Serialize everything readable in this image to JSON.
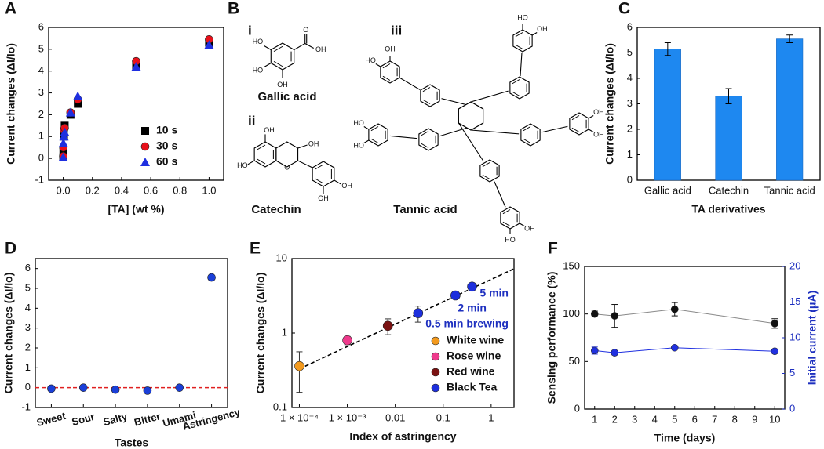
{
  "chart_data": [
    {
      "panel": "A",
      "type": "scatter",
      "x": [
        0,
        0.001,
        0.005,
        0.01,
        0.05,
        0.1,
        0.5,
        1
      ],
      "series": [
        {
          "name": "10 s",
          "color": "#000000",
          "marker": "square",
          "values": [
            0.05,
            0.4,
            1.0,
            1.5,
            2.0,
            2.5,
            4.2,
            5.3
          ]
        },
        {
          "name": "30 s",
          "color": "#e8101a",
          "marker": "circle",
          "values": [
            0.1,
            0.5,
            1.3,
            1.4,
            2.1,
            2.7,
            4.45,
            5.45
          ]
        },
        {
          "name": "60 s",
          "color": "#1f2fe0",
          "marker": "triangle",
          "values": [
            0.05,
            0.7,
            1.0,
            1.2,
            2.1,
            2.85,
            4.2,
            5.2
          ]
        }
      ],
      "xlabel": "[TA] (wt %)",
      "ylabel": "Current changes (ΔI/Io)",
      "xlim": [
        -0.1,
        1.1
      ],
      "ylim": [
        -1,
        6
      ],
      "xticks": [
        {
          "value": 0,
          "label": "0.0"
        },
        {
          "value": 0.2,
          "label": "0.2"
        },
        {
          "value": 0.4,
          "label": "0.4"
        },
        {
          "value": 0.6,
          "label": "0.6"
        },
        {
          "value": 0.8,
          "label": "0.8"
        },
        {
          "value": 1,
          "label": "1.0"
        }
      ],
      "yticks": [
        -1,
        0,
        1,
        2,
        3,
        4,
        5,
        6
      ],
      "legend": "lower right"
    },
    {
      "panel": "C",
      "type": "bar",
      "categories": [
        "Gallic acid",
        "Catechin",
        "Tannic acid"
      ],
      "values": [
        5.15,
        3.3,
        5.55
      ],
      "errors": [
        0.25,
        0.3,
        0.15
      ],
      "color": "#1e88f0",
      "xlabel": "TA derivatives",
      "ylabel": "Current changes (ΔI/Io)",
      "ylim": [
        0,
        6
      ],
      "yticks": [
        0,
        1,
        2,
        3,
        4,
        5,
        6
      ]
    },
    {
      "panel": "D",
      "type": "scatter",
      "categories": [
        "Sweet",
        "Sour",
        "Salty",
        "Bitter",
        "Umami",
        "Astringency"
      ],
      "values": [
        -0.05,
        0,
        -0.1,
        -0.15,
        0,
        5.55
      ],
      "color": "#1a3fd8",
      "marker": "circle",
      "reference_line": {
        "value": 0,
        "color": "#e02020"
      },
      "xlabel": "Tastes",
      "ylabel": "Current changes (ΔI/Io)",
      "ylim": [
        -1,
        6.5
      ],
      "yticks": [
        -1,
        0,
        1,
        2,
        3,
        4,
        5,
        6
      ]
    },
    {
      "panel": "E",
      "type": "scatter",
      "xscale": "log",
      "yscale": "log",
      "series": [
        {
          "name": "White wine",
          "color": "#f39a1e",
          "marker": "circle",
          "x": [
            0.0001
          ],
          "values": [
            0.36
          ],
          "errors": [
            0.2
          ]
        },
        {
          "name": "Rose wine",
          "color": "#ee3a8c",
          "marker": "circle",
          "x": [
            0.001
          ],
          "values": [
            0.8
          ],
          "errors": [
            0.1
          ]
        },
        {
          "name": "Red wine",
          "color": "#7a1212",
          "marker": "circle",
          "x": [
            0.007
          ],
          "values": [
            1.25
          ],
          "errors": [
            0.3
          ]
        },
        {
          "name": "Black Tea",
          "color": "#1d2fdc",
          "marker": "circle",
          "x": [
            0.03,
            0.18,
            0.4
          ],
          "values": [
            1.85,
            3.2,
            4.2
          ],
          "errors": [
            0.45,
            0.3,
            0.25
          ]
        }
      ],
      "fit_line": {
        "x": [
          0.0001,
          3
        ],
        "y": [
          0.33,
          7.3
        ]
      },
      "annotations": [
        "5 min",
        "2 min",
        "0.5 min brewing"
      ],
      "annotation_color": "#1d2fbf",
      "xlabel": "Index of astringency",
      "ylabel": "Current changes (ΔI/Io)",
      "xlim": [
        7e-05,
        3
      ],
      "ylim": [
        0.1,
        10
      ],
      "xticks": [
        {
          "value": 0.0001,
          "label": "1 × 10⁻⁴"
        },
        {
          "value": 0.001,
          "label": "1 × 10⁻³"
        },
        0.01,
        0.1,
        1
      ],
      "yticks": [
        0.1,
        1,
        10
      ],
      "legend": "lower right"
    },
    {
      "panel": "F",
      "type": "line",
      "x": [
        1,
        2,
        5,
        10
      ],
      "series": [
        {
          "color": "#111111",
          "line_color": "#888888",
          "values": [
            100,
            98,
            105,
            90
          ],
          "errors": [
            3,
            12,
            7,
            5
          ]
        },
        {
          "color": "#2030e0",
          "line_color": "#2030e0",
          "axis": "y2",
          "values": [
            8.2,
            7.9,
            8.6,
            8.1
          ],
          "errors": [
            0.5,
            0.3,
            0.2,
            0.3
          ]
        }
      ],
      "xlabel": "Time (days)",
      "ylabel": "Sensing performance (%)",
      "y2label": "Initial current (μA)",
      "y2_color": "#1d2fbf",
      "xlim": [
        0.5,
        10.5
      ],
      "xticks": [
        1,
        2,
        3,
        4,
        5,
        6,
        7,
        8,
        9,
        10
      ],
      "ylim": [
        0,
        150
      ],
      "yticks": [
        0,
        50,
        100,
        150
      ],
      "y2lim": [
        0,
        20
      ],
      "y2ticks": [
        0,
        5,
        10,
        15,
        20
      ]
    }
  ],
  "diagram": {
    "panel": "B",
    "structures": [
      {
        "numeral": "i",
        "name": "Gallic acid",
        "atoms": [
          "HO",
          "HO",
          "OH",
          "O",
          "OH"
        ]
      },
      {
        "numeral": "ii",
        "name": "Catechin",
        "atoms": [
          "OH",
          "HO",
          "OH",
          "O",
          "OH",
          "OH"
        ]
      },
      {
        "numeral": "iii",
        "name": "Tannic acid",
        "atoms": [
          "HO",
          "OH",
          "HO",
          "OH",
          "HO",
          "HO",
          "OH",
          "OH",
          "HO",
          "OH"
        ]
      }
    ]
  }
}
